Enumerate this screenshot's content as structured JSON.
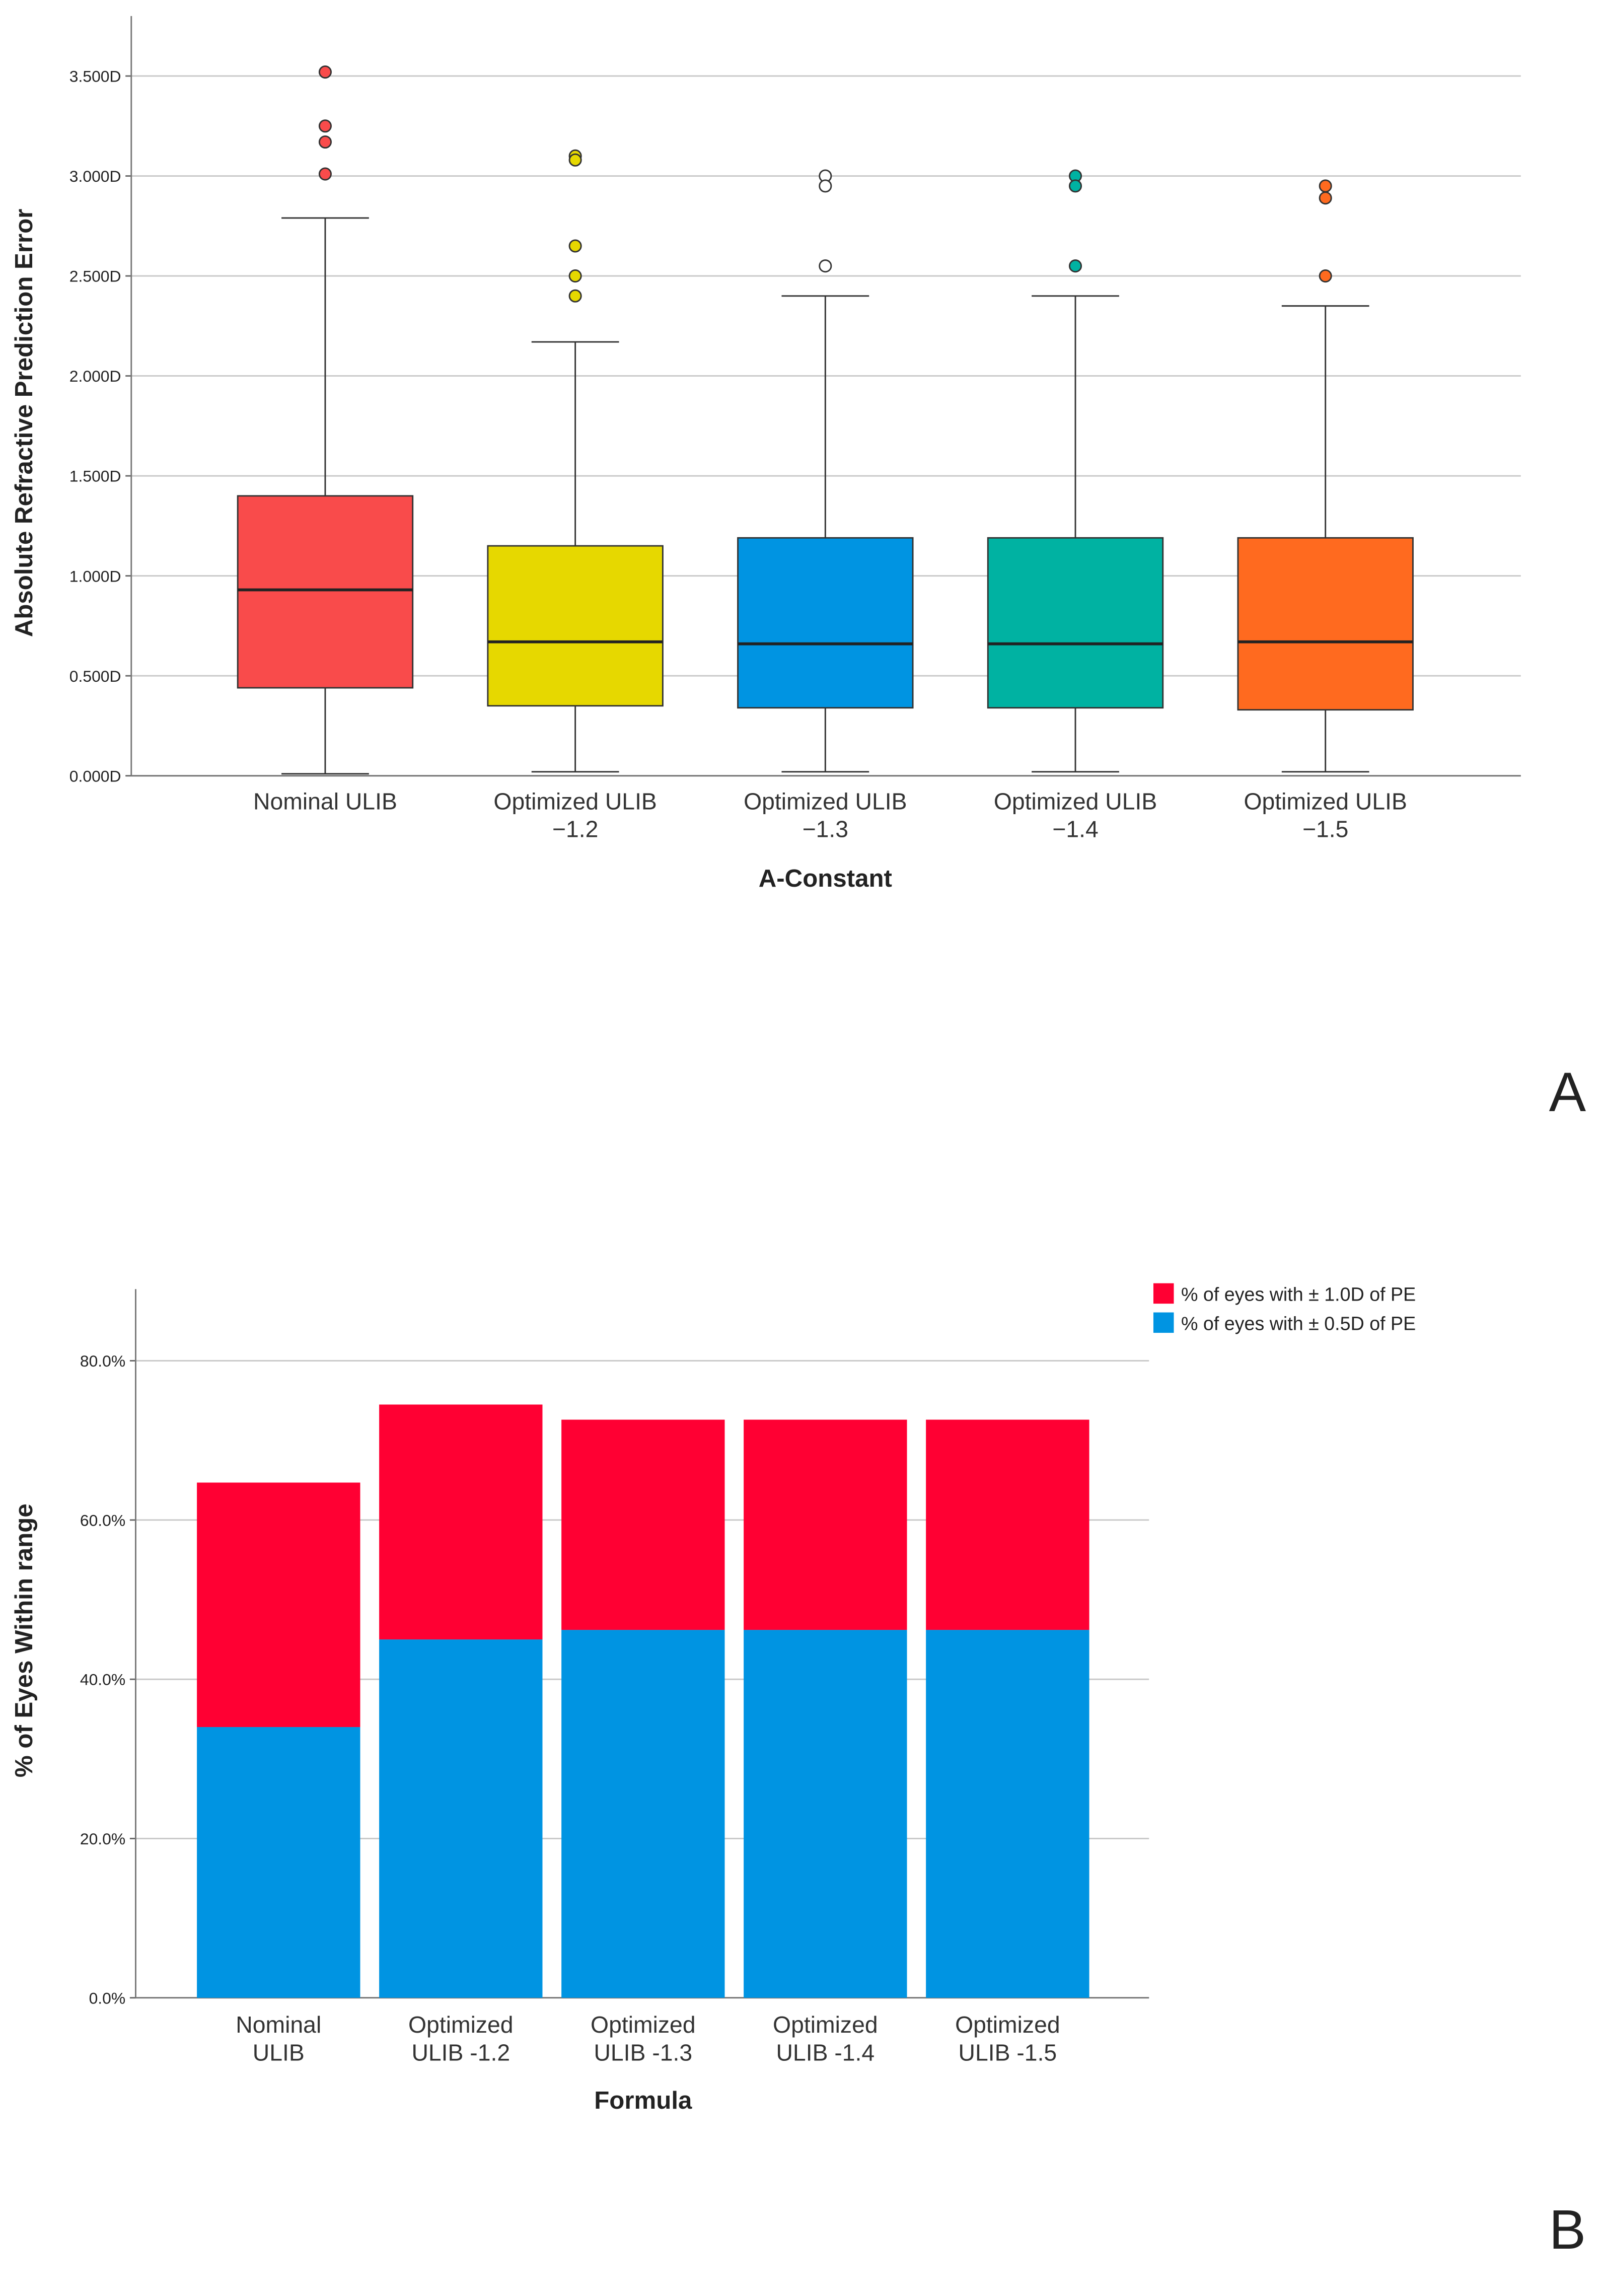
{
  "chart_data": [
    {
      "type": "box",
      "panel_label": "A",
      "y_label": "Absolute Refractive Prediction Error",
      "x_label": "A-Constant",
      "categories": [
        [
          "Nominal ULIB"
        ],
        [
          "Optimized ULIB",
          "−1.2"
        ],
        [
          "Optimized ULIB",
          "−1.3"
        ],
        [
          "Optimized ULIB",
          "−1.4"
        ],
        [
          "Optimized ULIB",
          "−1.5"
        ]
      ],
      "boxes": [
        {
          "color": "#f94b4b",
          "outlier_color": "#f94b4b",
          "min": 0.01,
          "q1": 0.44,
          "median": 0.93,
          "q3": 1.4,
          "max": 2.79,
          "outliers": [
            3.52,
            3.25,
            3.17,
            3.01
          ]
        },
        {
          "color": "#e6d800",
          "outlier_color": "#e6d800",
          "min": 0.02,
          "q1": 0.35,
          "median": 0.67,
          "q3": 1.15,
          "max": 2.17,
          "outliers": [
            3.1,
            3.08,
            2.65,
            2.5,
            2.4
          ]
        },
        {
          "color": "#0094e2",
          "outlier_color": "#ffffff",
          "min": 0.02,
          "q1": 0.34,
          "median": 0.66,
          "q3": 1.19,
          "max": 2.4,
          "outliers": [
            3.0,
            2.95,
            2.55
          ]
        },
        {
          "color": "#00b2a2",
          "outlier_color": "#00b2a2",
          "min": 0.02,
          "q1": 0.34,
          "median": 0.66,
          "q3": 1.19,
          "max": 2.4,
          "outliers": [
            3.0,
            2.95,
            2.55
          ]
        },
        {
          "color": "#ff6a1f",
          "outlier_color": "#ff6a1f",
          "min": 0.02,
          "q1": 0.33,
          "median": 0.67,
          "q3": 1.19,
          "max": 2.35,
          "outliers": [
            2.95,
            2.89,
            2.5
          ]
        }
      ],
      "ylim": [
        0,
        3.8
      ],
      "yticks": [
        {
          "value": 0,
          "label": "0.000D"
        },
        {
          "value": 0.5,
          "label": "0.500D"
        },
        {
          "value": 1,
          "label": "1.000D"
        },
        {
          "value": 1.5,
          "label": "1.500D"
        },
        {
          "value": 2,
          "label": "2.000D"
        },
        {
          "value": 2.5,
          "label": "2.500D"
        },
        {
          "value": 3,
          "label": "3.000D"
        },
        {
          "value": 3.5,
          "label": "3.500D"
        }
      ],
      "grid": true
    },
    {
      "type": "bar",
      "stacked": true,
      "panel_label": "B",
      "y_label": "% of Eyes Within range",
      "x_label": "Formula",
      "categories": [
        [
          "Nominal",
          "ULIB"
        ],
        [
          "Optimized",
          "ULIB -1.2"
        ],
        [
          "Optimized",
          "ULIB -1.3"
        ],
        [
          "Optimized",
          "ULIB -1.4"
        ],
        [
          "Optimized",
          "ULIB -1.5"
        ]
      ],
      "series": [
        {
          "name": "% of eyes with ± 0.5D of PE",
          "color": "#0094e2",
          "values": [
            34.0,
            45.0,
            46.2,
            46.2,
            46.2
          ]
        },
        {
          "name": "% of eyes with ± 1.0D of PE",
          "color": "#ff0033",
          "values": [
            30.7,
            29.5,
            26.4,
            26.4,
            26.4
          ]
        }
      ],
      "ylim": [
        0,
        89
      ],
      "yticks": [
        {
          "value": 0,
          "label": "0.0%"
        },
        {
          "value": 20,
          "label": "20.0%"
        },
        {
          "value": 40,
          "label": "40.0%"
        },
        {
          "value": 60,
          "label": "60.0%"
        },
        {
          "value": 80,
          "label": "80.0%"
        }
      ],
      "grid": true,
      "legend": "top-right"
    }
  ]
}
